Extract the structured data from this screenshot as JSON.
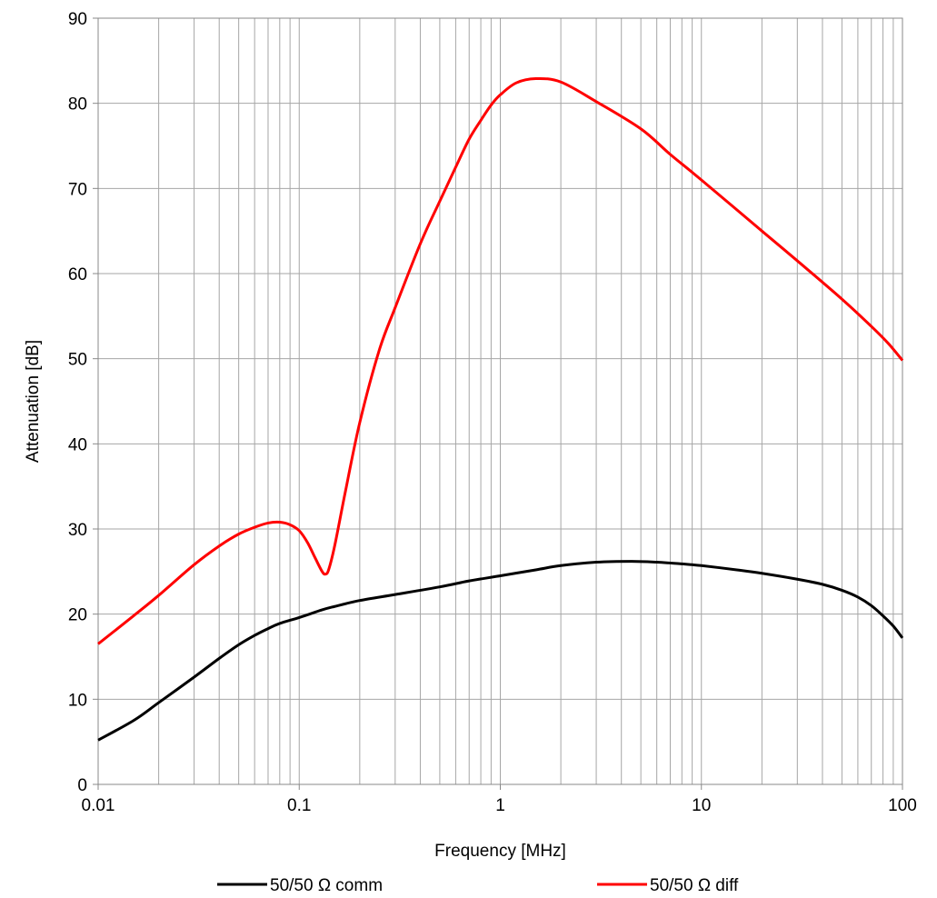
{
  "chart_data": {
    "type": "line",
    "title": "",
    "xlabel": "Frequency [MHz]",
    "ylabel": "Attenuation [dB]",
    "x_scale": "log",
    "xlim": [
      0.01,
      100
    ],
    "ylim": [
      0,
      90
    ],
    "x_ticks": [
      0.01,
      0.1,
      1,
      10,
      100
    ],
    "x_tick_labels": [
      "0.01",
      "0.1",
      "1",
      "10",
      "100"
    ],
    "y_ticks": [
      0,
      10,
      20,
      30,
      40,
      50,
      60,
      70,
      80,
      90
    ],
    "y_tick_labels": [
      "0",
      "10",
      "20",
      "30",
      "40",
      "50",
      "60",
      "70",
      "80",
      "90"
    ],
    "grid": true,
    "legend_position": "bottom",
    "series": [
      {
        "name": "50/50 Ω comm",
        "color": "#000000",
        "points": [
          [
            0.01,
            5.2
          ],
          [
            0.015,
            7.5
          ],
          [
            0.02,
            9.6
          ],
          [
            0.03,
            12.6
          ],
          [
            0.04,
            14.8
          ],
          [
            0.05,
            16.4
          ],
          [
            0.06,
            17.5
          ],
          [
            0.07,
            18.3
          ],
          [
            0.08,
            18.9
          ],
          [
            0.1,
            19.6
          ],
          [
            0.13,
            20.5
          ],
          [
            0.15,
            20.9
          ],
          [
            0.2,
            21.6
          ],
          [
            0.3,
            22.3
          ],
          [
            0.5,
            23.2
          ],
          [
            0.7,
            23.9
          ],
          [
            1,
            24.5
          ],
          [
            1.5,
            25.2
          ],
          [
            2,
            25.7
          ],
          [
            3,
            26.1
          ],
          [
            4.5,
            26.2
          ],
          [
            6,
            26.1
          ],
          [
            8,
            25.9
          ],
          [
            10,
            25.7
          ],
          [
            15,
            25.2
          ],
          [
            20,
            24.8
          ],
          [
            30,
            24.1
          ],
          [
            40,
            23.5
          ],
          [
            50,
            22.8
          ],
          [
            60,
            22.0
          ],
          [
            70,
            21.0
          ],
          [
            80,
            19.8
          ],
          [
            90,
            18.6
          ],
          [
            100,
            17.2
          ]
        ]
      },
      {
        "name": "50/50 Ω diff",
        "color": "#ff0000",
        "points": [
          [
            0.01,
            16.5
          ],
          [
            0.015,
            19.8
          ],
          [
            0.02,
            22.2
          ],
          [
            0.03,
            25.8
          ],
          [
            0.04,
            28.0
          ],
          [
            0.05,
            29.4
          ],
          [
            0.06,
            30.2
          ],
          [
            0.07,
            30.7
          ],
          [
            0.08,
            30.8
          ],
          [
            0.09,
            30.5
          ],
          [
            0.1,
            29.8
          ],
          [
            0.11,
            28.4
          ],
          [
            0.12,
            26.6
          ],
          [
            0.13,
            25.0
          ],
          [
            0.135,
            24.7
          ],
          [
            0.14,
            25.2
          ],
          [
            0.15,
            28.0
          ],
          [
            0.17,
            34.5
          ],
          [
            0.2,
            42.5
          ],
          [
            0.25,
            51.0
          ],
          [
            0.3,
            56.0
          ],
          [
            0.4,
            63.5
          ],
          [
            0.5,
            68.5
          ],
          [
            0.6,
            72.5
          ],
          [
            0.7,
            75.8
          ],
          [
            0.8,
            78.0
          ],
          [
            0.9,
            79.8
          ],
          [
            1,
            81.0
          ],
          [
            1.2,
            82.4
          ],
          [
            1.5,
            82.9
          ],
          [
            2,
            82.5
          ],
          [
            3,
            80.2
          ],
          [
            5,
            77.0
          ],
          [
            7,
            74.0
          ],
          [
            10,
            71.0
          ],
          [
            20,
            65.0
          ],
          [
            30,
            61.5
          ],
          [
            50,
            57.0
          ],
          [
            70,
            53.8
          ],
          [
            85,
            51.8
          ],
          [
            100,
            49.8
          ]
        ]
      }
    ]
  }
}
